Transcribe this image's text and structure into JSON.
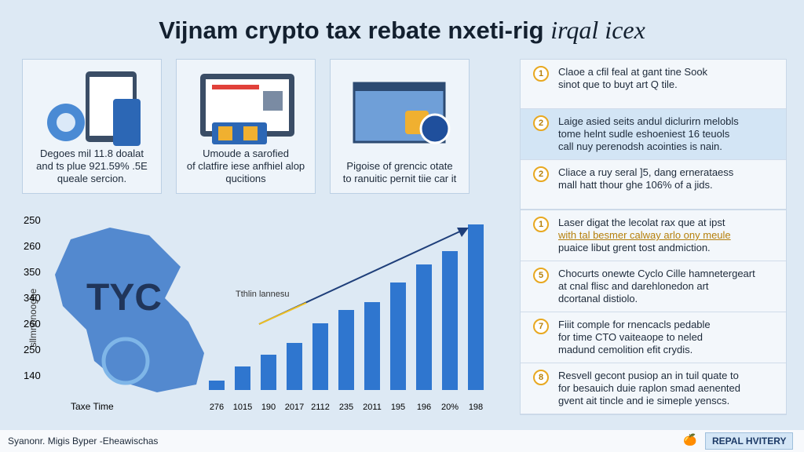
{
  "header": {
    "title": "Vijnam crypto tax rebate nxeti-rig",
    "title_italic": "irqal icex"
  },
  "cards": [
    {
      "lines": [
        "Degoes mil 11.8 doalat",
        "and ts plue 921.59% .5E",
        "queale sercion."
      ]
    },
    {
      "lines": [
        "Umoude a sarofied",
        "of clatfire iese anfhiel alop",
        "qucitions"
      ]
    },
    {
      "lines": [
        "Pigoise of grencic otate",
        "to ranuitic pernit tiie car it"
      ]
    }
  ],
  "chart": {
    "axis_title": "sllmnonooghe",
    "y_labels": [
      "250",
      "260",
      "350",
      "340",
      "260",
      "250",
      "140"
    ],
    "x_title": "Taxe Time",
    "x_labels": [
      "276",
      "1015",
      "190",
      "2017",
      "2112",
      "235",
      "2011",
      "195",
      "196",
      "20%",
      "198"
    ],
    "map_text": "TYC",
    "map_note": "Tthlin lannesu"
  },
  "items": [
    {
      "number": "1",
      "lines": [
        "Claoe a cfil feal at gant tine Sook",
        "sinot que to buyt art Q tile."
      ]
    },
    {
      "number": "2",
      "lines": [
        "Laige asied seits andul diclurirn melobls",
        "tome helnt sudle eshoeniest 16 teuols",
        "call nuy perenodsh acointies is nain."
      ]
    },
    {
      "number": "2",
      "lines": [
        "Cliace a ruy seral ]5, dang ernerataess",
        "mall hatt thour ghe 106% of a jids."
      ]
    },
    {
      "number": "1",
      "lines": [
        "Laser digat the lecolat rax que at ipst",
        "with tal besmer calway arlo ony meule",
        "puaice libut grent tost andmiction."
      ]
    },
    {
      "number": "5",
      "lines": [
        "Chocurts onewte Cyclo Cille hamnetergeart",
        "at cnal flisc and darehlonedon art",
        "dcortanal distiolo."
      ]
    },
    {
      "number": "7",
      "lines": [
        "Fiiit comple for rnencacls pedable",
        "for time CTO vaiteaope to neled",
        "madund cemolition efit crydis."
      ]
    },
    {
      "number": "8",
      "lines": [
        "Resvell gecont pusiop an in tuil quate to",
        "for besauich duie raplon smad aenented",
        "gvent ait tincle and ie simeple yenscs."
      ]
    }
  ],
  "footer": {
    "text": "Syanonr. Migis Byper -Eheawischas",
    "badge": "REPAL HVITERY"
  }
}
